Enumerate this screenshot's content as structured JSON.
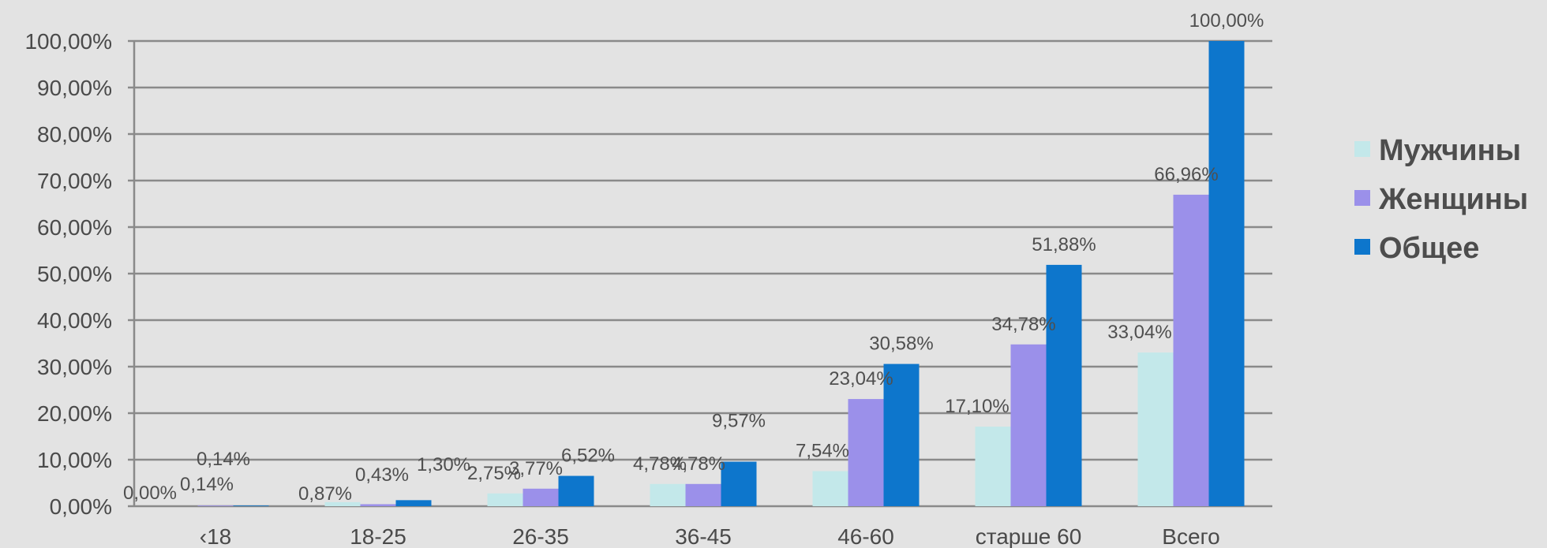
{
  "chart_data": {
    "type": "bar",
    "categories": [
      "‹18",
      "18-25",
      "26-35",
      "36-45",
      "46-60",
      "старше 60",
      "Всего"
    ],
    "series": [
      {
        "name": "Мужчины",
        "color": "#c3e8ea",
        "values": [
          0.0,
          0.87,
          2.75,
          4.78,
          7.54,
          17.1,
          33.04
        ],
        "labels": [
          "0,00%",
          "0,87%",
          "2,75%",
          "4,78%",
          "7,54%",
          "17,10%",
          "33,04%"
        ]
      },
      {
        "name": "Женщины",
        "color": "#9b90ea",
        "values": [
          0.14,
          0.43,
          3.77,
          4.78,
          23.04,
          34.78,
          66.96
        ],
        "labels": [
          "0,14%",
          "0,43%",
          "3,77%",
          "4,78%",
          "23,04%",
          "34,78%",
          "66,96%"
        ]
      },
      {
        "name": "Общее",
        "color": "#0d76cc",
        "values": [
          0.14,
          1.3,
          6.52,
          9.57,
          30.58,
          51.88,
          100.0
        ],
        "labels": [
          "0,14%",
          "1,30%",
          "6,52%",
          "9,57%",
          "30,58%",
          "51,88%",
          "100,00%"
        ]
      }
    ],
    "yticks": [
      "0,00%",
      "10,00%",
      "20,00%",
      "30,00%",
      "40,00%",
      "50,00%",
      "60,00%",
      "70,00%",
      "80,00%",
      "90,00%",
      "100,00%"
    ],
    "ylim": [
      0,
      100
    ],
    "grid": true,
    "legend": "right"
  }
}
